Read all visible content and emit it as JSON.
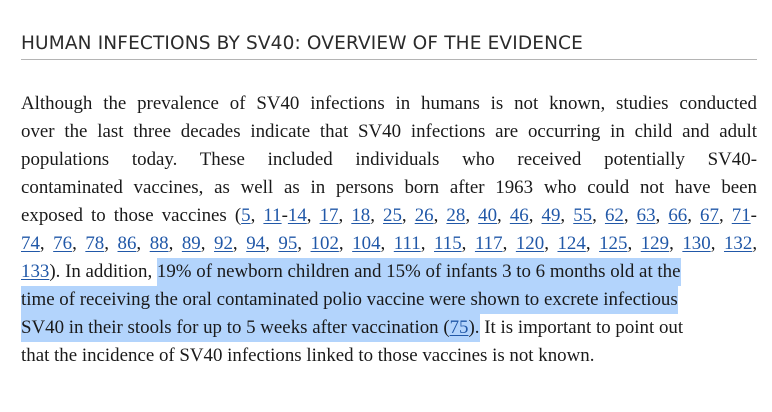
{
  "heading": "HUMAN INFECTIONS BY SV40: OVERVIEW OF THE EVIDENCE",
  "paragraph": {
    "l1": "Although the prevalence of SV40 infections in humans is not known, studies conducted",
    "l2": "over the last three decades indicate that SV40 infections are occurring in child and adult",
    "l3": "populations today. These included individuals who received potentially SV40-",
    "l4": "contaminated vaccines, as well as in persons born after 1963 who could not have been",
    "l5_text": "exposed to those vaccines (",
    "refs_a": [
      "5",
      "11",
      "14",
      "17",
      "18",
      "25",
      "26",
      "28",
      "40",
      "46",
      "49",
      "55",
      "62",
      "63",
      "66",
      "67",
      "71"
    ],
    "refs_b": [
      "74",
      "76",
      "78",
      "86",
      "88",
      "89",
      "92",
      "94",
      "95",
      "102",
      "104",
      "111",
      "115",
      "117",
      "120",
      "124",
      "125",
      "129",
      "130",
      "132"
    ],
    "ref_last": "133",
    "after_refs": "). In addition, ",
    "highlight_1": "19% of newborn children and 15% of infants 3 to 6 months old at the",
    "highlight_2": "time of receiving the oral contaminated polio vaccine were shown to excrete infectious",
    "highlight_3_text": "SV40 in their stools for up to 5 weeks after vaccination (",
    "highlight_ref": "75",
    "highlight_close": ").",
    "tail_1": " It is important to point out",
    "tail_2": "that the incidence of SV40 infections linked to those vaccines is not known."
  },
  "colors": {
    "link": "#2158a8",
    "highlight": "#b3d4fc",
    "text": "#1a1a1a",
    "heading": "#2b2b2b",
    "rule": "#b4b4b4"
  }
}
